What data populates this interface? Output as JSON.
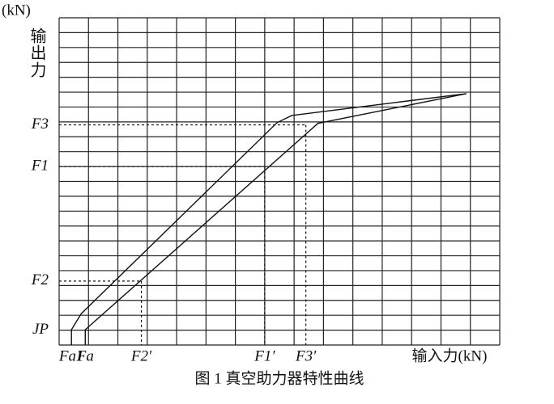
{
  "chart_data": {
    "type": "line",
    "title": "图 1   真空助力器特性曲线",
    "y_unit": "(kN)",
    "y_label": "输出力",
    "x_label": "输入力(kN)",
    "xlim": [
      0,
      15
    ],
    "ylim": [
      0,
      22
    ],
    "xticks": [
      {
        "value": 0.42,
        "label": "Fa1"
      },
      {
        "value": 0.89,
        "label": "Fa"
      },
      {
        "value": 2.8,
        "label": "F2′"
      },
      {
        "value": 7.0,
        "label": "F1′"
      },
      {
        "value": 8.4,
        "label": "F3′"
      }
    ],
    "yticks": [
      {
        "value": 1,
        "label": "JP"
      },
      {
        "value": 4.3,
        "label": "F2"
      },
      {
        "value": 12,
        "label": "F1"
      },
      {
        "value": 14.8,
        "label": "F3"
      }
    ],
    "grid": true,
    "series": [
      {
        "color": "#111111",
        "x": [
          0.42,
          0.42,
          0.75,
          7.42,
          7.92,
          13.86
        ],
        "values": [
          0,
          1.03,
          2.1,
          14.95,
          15.43,
          16.9
        ]
      },
      {
        "color": "#111111",
        "x": [
          0.89,
          0.89,
          8.81,
          13.86
        ],
        "values": [
          0,
          1.03,
          14.9,
          16.9
        ]
      }
    ]
  }
}
